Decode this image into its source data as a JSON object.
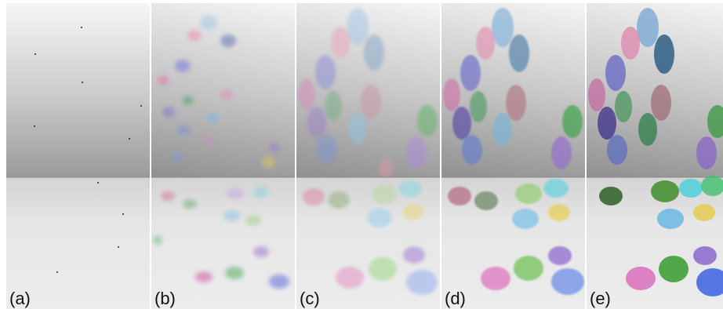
{
  "panels": [
    {
      "label": "(a)"
    },
    {
      "label": "(b)"
    },
    {
      "label": "(c)"
    },
    {
      "label": "(d)"
    },
    {
      "label": "(e)"
    }
  ],
  "colors": {
    "wall_top": "#f6f6f6",
    "wall_bottom": "#9a9a9a",
    "floor": "#e6e6e6",
    "label_text": "#111111"
  }
}
